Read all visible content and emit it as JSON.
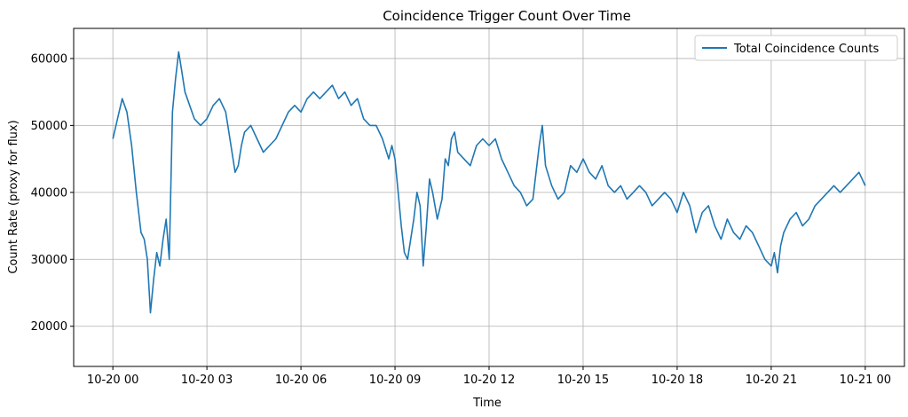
{
  "chart_data": {
    "type": "line",
    "title": "Coincidence Trigger Count Over Time",
    "xlabel": "Time",
    "ylabel": "Count Rate (proxy for flux)",
    "x_ticks": [
      "10-20 00",
      "10-20 03",
      "10-20 06",
      "10-20 09",
      "10-20 12",
      "10-20 15",
      "10-20 18",
      "10-20 21",
      "10-21 00"
    ],
    "x_unit": "hours since 10-20 00",
    "xlim": [
      -1.25,
      25.25
    ],
    "ylim": [
      14000,
      64500
    ],
    "y_ticks": [
      20000,
      30000,
      40000,
      50000,
      60000
    ],
    "grid": true,
    "legend_position": "top-right",
    "series": [
      {
        "name": "Total Coincidence Counts",
        "color": "#1f77b4",
        "x": [
          0,
          0.15,
          0.3,
          0.45,
          0.6,
          0.75,
          0.9,
          1.0,
          1.1,
          1.2,
          1.3,
          1.4,
          1.5,
          1.6,
          1.7,
          1.8,
          1.9,
          2.0,
          2.1,
          2.2,
          2.3,
          2.45,
          2.6,
          2.8,
          3.0,
          3.2,
          3.4,
          3.6,
          3.8,
          3.9,
          4.0,
          4.1,
          4.2,
          4.4,
          4.6,
          4.8,
          5.0,
          5.2,
          5.4,
          5.6,
          5.8,
          6.0,
          6.2,
          6.4,
          6.6,
          6.8,
          7.0,
          7.2,
          7.4,
          7.6,
          7.8,
          8.0,
          8.2,
          8.4,
          8.6,
          8.8,
          8.9,
          9.0,
          9.1,
          9.2,
          9.3,
          9.4,
          9.5,
          9.6,
          9.7,
          9.8,
          9.9,
          10.0,
          10.1,
          10.2,
          10.35,
          10.5,
          10.6,
          10.7,
          10.8,
          10.9,
          11.0,
          11.2,
          11.4,
          11.6,
          11.8,
          12.0,
          12.2,
          12.4,
          12.6,
          12.8,
          13.0,
          13.2,
          13.4,
          13.6,
          13.7,
          13.8,
          14.0,
          14.2,
          14.4,
          14.6,
          14.8,
          15.0,
          15.2,
          15.4,
          15.6,
          15.8,
          16.0,
          16.2,
          16.4,
          16.6,
          16.8,
          17.0,
          17.2,
          17.4,
          17.6,
          17.8,
          18.0,
          18.2,
          18.4,
          18.6,
          18.8,
          19.0,
          19.2,
          19.4,
          19.6,
          19.8,
          20.0,
          20.2,
          20.4,
          20.6,
          20.8,
          21.0,
          21.1,
          21.2,
          21.3,
          21.4,
          21.6,
          21.8,
          22.0,
          22.2,
          22.4,
          22.6,
          22.8,
          23.0,
          23.2,
          23.4,
          23.6,
          23.8,
          24.0
        ],
        "y": [
          48000,
          51000,
          54000,
          52000,
          47000,
          40000,
          34000,
          33000,
          30000,
          22000,
          27000,
          31000,
          29000,
          33000,
          36000,
          30000,
          52000,
          57000,
          61000,
          58000,
          55000,
          53000,
          51000,
          50000,
          51000,
          53000,
          54000,
          52000,
          46000,
          43000,
          44000,
          47000,
          49000,
          50000,
          48000,
          46000,
          47000,
          48000,
          50000,
          52000,
          53000,
          52000,
          54000,
          55000,
          54000,
          55000,
          56000,
          54000,
          55000,
          53000,
          54000,
          51000,
          50000,
          50000,
          48000,
          45000,
          47000,
          45000,
          40000,
          35000,
          31000,
          30000,
          33000,
          36000,
          40000,
          38000,
          29000,
          35000,
          42000,
          40000,
          36000,
          39000,
          45000,
          44000,
          48000,
          49000,
          46000,
          45000,
          44000,
          47000,
          48000,
          47000,
          48000,
          45000,
          43000,
          41000,
          40000,
          38000,
          39000,
          47000,
          50000,
          44000,
          41000,
          39000,
          40000,
          44000,
          43000,
          45000,
          43000,
          42000,
          44000,
          41000,
          40000,
          41000,
          39000,
          40000,
          41000,
          40000,
          38000,
          39000,
          40000,
          39000,
          37000,
          40000,
          38000,
          34000,
          37000,
          38000,
          35000,
          33000,
          36000,
          34000,
          33000,
          35000,
          34000,
          32000,
          30000,
          29000,
          31000,
          28000,
          32000,
          34000,
          36000,
          37000,
          35000,
          36000,
          38000,
          39000,
          40000,
          41000,
          40000,
          41000,
          42000,
          43000,
          41000
        ]
      }
    ]
  }
}
